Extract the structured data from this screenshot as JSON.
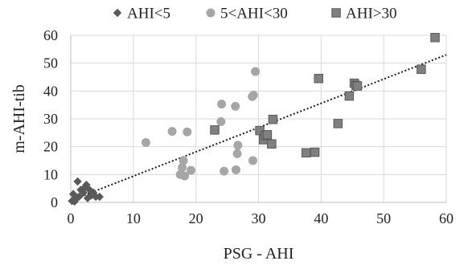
{
  "chart_data": {
    "type": "scatter",
    "title": "",
    "xlabel": "PSG - AHI",
    "ylabel": "m-AHI-tib",
    "xlim": [
      0,
      60
    ],
    "ylim": [
      0,
      60
    ],
    "x_ticks": [
      0,
      10,
      20,
      30,
      40,
      50,
      60
    ],
    "y_ticks": [
      0,
      10,
      20,
      30,
      40,
      50,
      60
    ],
    "grid": true,
    "legend_position": "top",
    "trendline": {
      "style": "dotted",
      "color": "#1a1a1a",
      "from": [
        0,
        0.7
      ],
      "to": [
        60,
        53
      ]
    },
    "series": [
      {
        "name": "AHI<5",
        "marker": "diamond-icon",
        "color": "#595959",
        "points": [
          {
            "x": 0.2,
            "y": 0.5
          },
          {
            "x": 0.4,
            "y": 3
          },
          {
            "x": 0.6,
            "y": 0.3
          },
          {
            "x": 0.9,
            "y": 1.5
          },
          {
            "x": 1.1,
            "y": 7.5
          },
          {
            "x": 1.3,
            "y": 2
          },
          {
            "x": 1.6,
            "y": 4.5
          },
          {
            "x": 2.0,
            "y": 3.5
          },
          {
            "x": 2.3,
            "y": 5.5
          },
          {
            "x": 2.5,
            "y": 6.3
          },
          {
            "x": 2.7,
            "y": 1.5
          },
          {
            "x": 3.0,
            "y": 4.5
          },
          {
            "x": 3.3,
            "y": 2.5
          },
          {
            "x": 3.6,
            "y": 3.5
          },
          {
            "x": 4.0,
            "y": 2
          },
          {
            "x": 4.6,
            "y": 2
          }
        ]
      },
      {
        "name": "5<AHI<30",
        "marker": "circle-icon",
        "color": "#a6a6a6",
        "points": [
          {
            "x": 12,
            "y": 21.5
          },
          {
            "x": 16.2,
            "y": 25.5
          },
          {
            "x": 17.5,
            "y": 10
          },
          {
            "x": 17.8,
            "y": 12.5
          },
          {
            "x": 18,
            "y": 15
          },
          {
            "x": 18.2,
            "y": 9.5
          },
          {
            "x": 18.6,
            "y": 25.3
          },
          {
            "x": 19.2,
            "y": 11.5
          },
          {
            "x": 24,
            "y": 29
          },
          {
            "x": 24.1,
            "y": 35.3
          },
          {
            "x": 24.5,
            "y": 11.2
          },
          {
            "x": 26.3,
            "y": 34.5
          },
          {
            "x": 26.4,
            "y": 11.7
          },
          {
            "x": 26.6,
            "y": 17.5
          },
          {
            "x": 26.7,
            "y": 20.5
          },
          {
            "x": 29,
            "y": 38
          },
          {
            "x": 29.2,
            "y": 38.5
          },
          {
            "x": 29.5,
            "y": 47
          },
          {
            "x": 29.1,
            "y": 15
          }
        ]
      },
      {
        "name": "AHI>30",
        "marker": "square-icon",
        "color": "#808080",
        "points": [
          {
            "x": 23,
            "y": 26
          },
          {
            "x": 30.2,
            "y": 25.8
          },
          {
            "x": 30.8,
            "y": 22.5
          },
          {
            "x": 31.1,
            "y": 24
          },
          {
            "x": 31.4,
            "y": 24.3
          },
          {
            "x": 32.1,
            "y": 21
          },
          {
            "x": 32.3,
            "y": 29.8
          },
          {
            "x": 37.6,
            "y": 17.8
          },
          {
            "x": 39,
            "y": 18
          },
          {
            "x": 39.6,
            "y": 44.5
          },
          {
            "x": 42.7,
            "y": 28.3
          },
          {
            "x": 44.5,
            "y": 38.2
          },
          {
            "x": 45.3,
            "y": 42.8
          },
          {
            "x": 45.6,
            "y": 42
          },
          {
            "x": 45.8,
            "y": 41.8
          },
          {
            "x": 56,
            "y": 47.8
          },
          {
            "x": 58.2,
            "y": 59.2
          }
        ]
      }
    ]
  }
}
